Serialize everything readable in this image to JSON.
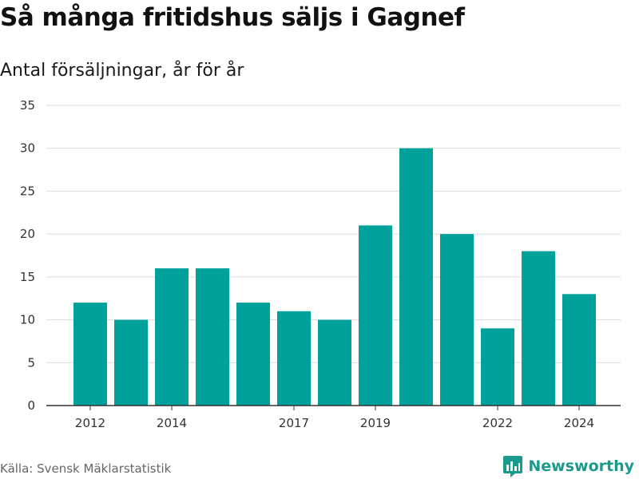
{
  "header": {
    "title": "Så många fritidshus säljs i Gagnef",
    "subtitle": "Antal försäljningar, år för år"
  },
  "footer": {
    "source": "Källa: Svensk Mäklarstatistik",
    "brand": "Newsworthy"
  },
  "colors": {
    "bar": "#00a19a",
    "grid": "#dcdcdc",
    "axis": "#333333",
    "brand": "#1a9a8c"
  },
  "chart_data": {
    "type": "bar",
    "title": "Så många fritidshus säljs i Gagnef",
    "subtitle": "Antal försäljningar, år för år",
    "categories": [
      "2012",
      "2013",
      "2014",
      "2015",
      "2016",
      "2017",
      "2018",
      "2019",
      "2020",
      "2021",
      "2022",
      "2023",
      "2024"
    ],
    "values": [
      12,
      10,
      16,
      16,
      12,
      11,
      10,
      21,
      30,
      20,
      9,
      18,
      13
    ],
    "x_tick_labels": [
      "2012",
      "2014",
      "2017",
      "2019",
      "2022",
      "2024"
    ],
    "y_ticks": [
      0,
      5,
      10,
      15,
      20,
      25,
      30,
      35
    ],
    "ylim": [
      0,
      35
    ],
    "xlabel": "",
    "ylabel": "",
    "grid": true,
    "legend": "none"
  }
}
